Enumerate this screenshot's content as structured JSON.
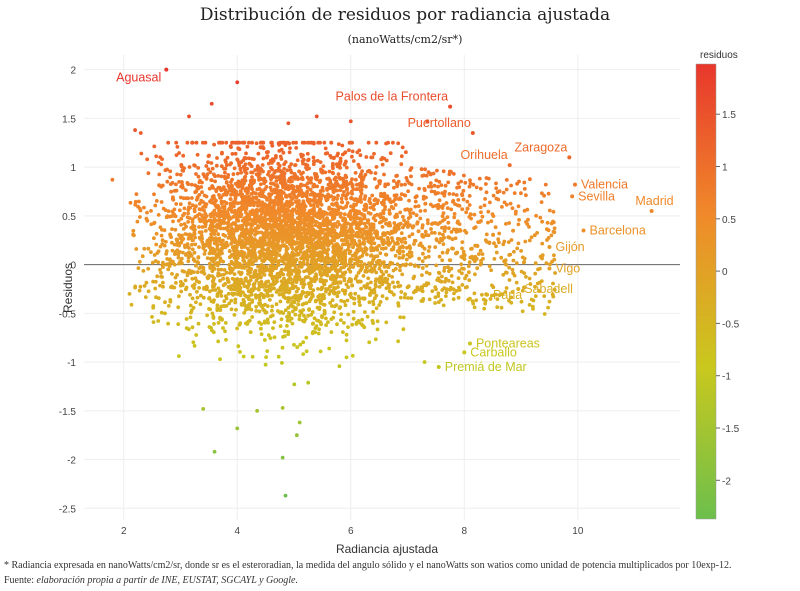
{
  "chart_data": {
    "type": "scatter",
    "title": "Distribución de residuos por radiancia ajustada",
    "subtitle": "(nanoWatts/cm2/sr*)",
    "xlabel": "Radiancia ajustada",
    "ylabel": "Residuos",
    "xlim": [
      1.3,
      11.8
    ],
    "ylim": [
      -2.62,
      2.15
    ],
    "x_ticks": [
      2,
      4,
      6,
      8,
      10
    ],
    "y_ticks": [
      -2.5,
      -2,
      -1.5,
      -1,
      -0.5,
      0,
      0.5,
      1,
      1.5,
      2
    ],
    "grid": true,
    "zero_line": true,
    "colorbar": {
      "title": "residuos",
      "range": [
        -2.37,
        1.98
      ],
      "ticks": [
        1.5,
        1,
        0.5,
        0,
        -0.5,
        -1,
        -1.5,
        -2
      ],
      "colors": [
        "#e8372c",
        "#f08a2a",
        "#c9c81e",
        "#6cbf4c"
      ]
    },
    "labeled_points": [
      {
        "name": "Aguasal",
        "x": 2.75,
        "y": 2.0
      },
      {
        "name": "Palos de la Frontera",
        "x": 7.75,
        "y": 1.62
      },
      {
        "name": "Puertollano",
        "x": 8.15,
        "y": 1.35
      },
      {
        "name": "Zaragoza",
        "x": 9.85,
        "y": 1.1
      },
      {
        "name": "Orihuela",
        "x": 8.8,
        "y": 1.02
      },
      {
        "name": "Valencia",
        "x": 9.95,
        "y": 0.82
      },
      {
        "name": "Sevilla",
        "x": 9.9,
        "y": 0.7
      },
      {
        "name": "Madrid",
        "x": 11.3,
        "y": 0.55
      },
      {
        "name": "Barcelona",
        "x": 10.1,
        "y": 0.35
      },
      {
        "name": "Gijón",
        "x": 9.5,
        "y": 0.18
      },
      {
        "name": "Vigo",
        "x": 9.5,
        "y": -0.04
      },
      {
        "name": "Sabadell",
        "x": 8.95,
        "y": -0.25
      },
      {
        "name": "Parla",
        "x": 8.4,
        "y": -0.31
      },
      {
        "name": "Ponteareas",
        "x": 8.1,
        "y": -0.81
      },
      {
        "name": "Carballo",
        "x": 8.0,
        "y": -0.9
      },
      {
        "name": "Premiá de Mar",
        "x": 7.55,
        "y": -1.05
      }
    ],
    "extra_points": [
      {
        "x": 4.0,
        "y": 1.87
      },
      {
        "x": 3.15,
        "y": 1.52
      },
      {
        "x": 3.55,
        "y": 1.65
      },
      {
        "x": 1.8,
        "y": 0.87
      },
      {
        "x": 2.2,
        "y": 1.38
      },
      {
        "x": 2.3,
        "y": 1.35
      },
      {
        "x": 4.9,
        "y": 1.45
      },
      {
        "x": 5.4,
        "y": 1.52
      },
      {
        "x": 6.0,
        "y": 1.47
      },
      {
        "x": 7.35,
        "y": 1.47
      },
      {
        "x": 3.4,
        "y": -1.48
      },
      {
        "x": 3.6,
        "y": -1.92
      },
      {
        "x": 4.8,
        "y": -1.98
      },
      {
        "x": 4.85,
        "y": -2.37
      },
      {
        "x": 5.05,
        "y": -1.75
      },
      {
        "x": 4.0,
        "y": -1.68
      },
      {
        "x": 4.35,
        "y": -1.5
      },
      {
        "x": 5.1,
        "y": -1.62
      },
      {
        "x": 4.8,
        "y": -1.47
      },
      {
        "x": 7.3,
        "y": -1.0
      }
    ],
    "cloud": {
      "approx_points": 4600,
      "x_range": [
        1.8,
        11.3
      ],
      "x_mode": 4.6,
      "y_center": 0.3,
      "y_range": [
        -2.37,
        1.98
      ]
    }
  },
  "footnote": {
    "line1": "* Radiancia expresada en nanoWatts/cm2/sr, donde sr es el esteroradian, la medida del angulo sólido y el nanoWatts son watios como unidad de potencia multiplicados por 10exp-12.",
    "source_prefix": "Fuente: ",
    "source_text": "elaboración propia a partir de INE, EUSTAT, SGCAYL y Google."
  }
}
